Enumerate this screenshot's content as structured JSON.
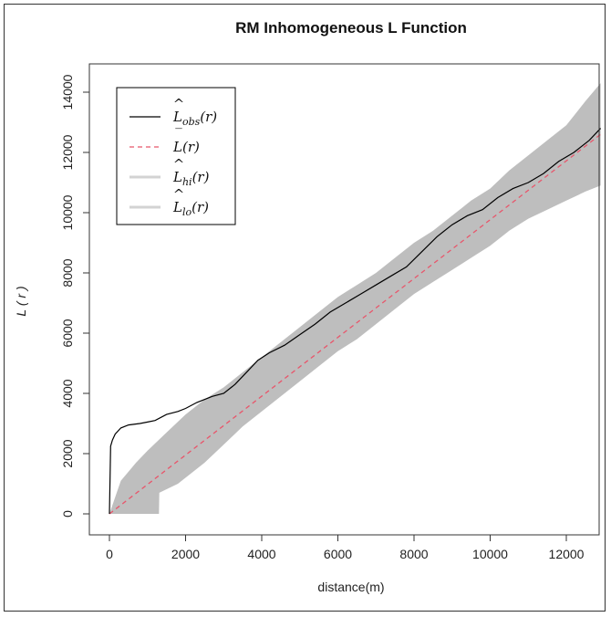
{
  "chart_data": {
    "type": "line",
    "title": "RM Inhomogeneous L Function",
    "xlabel": "distance(m)",
    "ylabel": "L ( r )",
    "xlim": [
      0,
      12900
    ],
    "ylim": [
      0,
      14000
    ],
    "x_ticks": [
      "0",
      "2000",
      "4000",
      "6000",
      "8000",
      "10000",
      "12000"
    ],
    "y_ticks": [
      "0",
      "2000",
      "4000",
      "6000",
      "8000",
      "10000",
      "12000",
      "14000"
    ],
    "legend_position": "top-left",
    "legend": [
      {
        "base": "L",
        "hat": "^",
        "sub": "obs",
        "arg": "(r)",
        "color": "#000000",
        "style": "solid"
      },
      {
        "base": "L",
        "hat": "‾",
        "sub": "",
        "arg": "(r)",
        "color": "#e8566b",
        "style": "dashed"
      },
      {
        "base": "L",
        "hat": "^",
        "sub": "hi",
        "arg": "(r)",
        "color": "#d3d3d3",
        "style": "solid"
      },
      {
        "base": "L",
        "hat": "^",
        "sub": "lo",
        "arg": "(r)",
        "color": "#d3d3d3",
        "style": "solid"
      }
    ],
    "series": [
      {
        "key": "obs",
        "color": "#000000",
        "x": [
          0,
          30,
          80,
          150,
          300,
          500,
          800,
          1000,
          1200,
          1500,
          1800,
          2000,
          2300,
          2700,
          3000,
          3300,
          3600,
          3900,
          4200,
          4600,
          5000,
          5400,
          5800,
          6200,
          6600,
          7000,
          7400,
          7800,
          8200,
          8600,
          9000,
          9400,
          9800,
          10200,
          10600,
          11000,
          11400,
          11800,
          12200,
          12600,
          12900
        ],
        "y": [
          0,
          2250,
          2450,
          2650,
          2850,
          2950,
          3000,
          3050,
          3100,
          3300,
          3400,
          3500,
          3700,
          3900,
          4000,
          4300,
          4700,
          5100,
          5350,
          5600,
          5950,
          6300,
          6700,
          7000,
          7300,
          7600,
          7900,
          8200,
          8700,
          9200,
          9600,
          9900,
          10100,
          10500,
          10800,
          11000,
          11300,
          11700,
          12000,
          12400,
          12800
        ]
      },
      {
        "key": "theo",
        "color": "#e8566b",
        "x": [
          0,
          12900
        ],
        "y": [
          0,
          12600
        ]
      },
      {
        "key": "hi",
        "color": "#bebebe",
        "x": [
          0,
          300,
          700,
          1000,
          1500,
          2000,
          2500,
          3000,
          3500,
          4000,
          4500,
          5000,
          5500,
          6000,
          6500,
          7000,
          7500,
          8000,
          8500,
          9000,
          9500,
          10000,
          10500,
          11000,
          11500,
          12000,
          12500,
          12900
        ],
        "y": [
          0,
          1100,
          1700,
          2100,
          2700,
          3300,
          3800,
          4200,
          4700,
          5200,
          5700,
          6200,
          6700,
          7200,
          7600,
          8000,
          8500,
          9000,
          9400,
          9900,
          10400,
          10800,
          11400,
          11900,
          12400,
          12900,
          13700,
          14300
        ]
      },
      {
        "key": "lo",
        "color": "#bebebe",
        "x": [
          0,
          1300,
          1310,
          1800,
          2500,
          3000,
          3500,
          4000,
          4500,
          5000,
          5500,
          6000,
          6500,
          7000,
          7500,
          8000,
          8500,
          9000,
          9500,
          10000,
          10500,
          11000,
          11500,
          12000,
          12500,
          12900
        ],
        "y": [
          0,
          0,
          700,
          1000,
          1700,
          2300,
          2900,
          3400,
          3900,
          4400,
          4900,
          5400,
          5800,
          6300,
          6800,
          7300,
          7700,
          8100,
          8500,
          8900,
          9400,
          9800,
          10100,
          10400,
          10700,
          10900
        ]
      }
    ]
  }
}
